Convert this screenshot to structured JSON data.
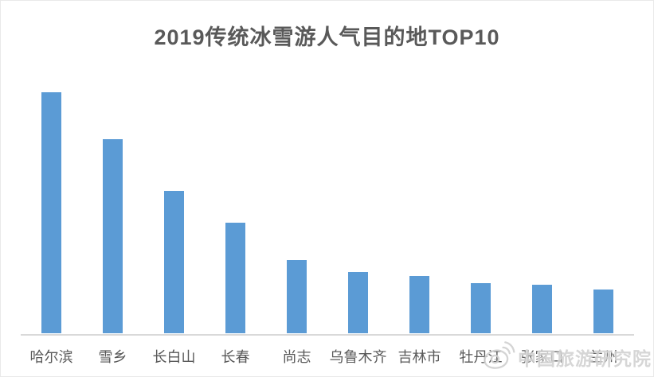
{
  "chart_data": {
    "type": "bar",
    "title": "2019传统冰雪游人气目的地TOP10",
    "categories": [
      "哈尔滨",
      "雪乡",
      "长白山",
      "长春",
      "尚志",
      "乌鲁木齐",
      "吉林市",
      "牡丹江",
      "张家口",
      "兰州"
    ],
    "values": [
      100,
      80.5,
      59,
      46,
      30.5,
      25.5,
      23.8,
      20.8,
      20.1,
      18.2
    ],
    "xlabel": "",
    "ylabel": "",
    "ylim": [
      0,
      100
    ],
    "grid": false,
    "legend": "none",
    "value_axis_visible": false
  },
  "watermark": {
    "text": "中国旅游研究院",
    "icon": "weibo-logo-icon"
  },
  "colors": {
    "bar": "#5B9BD5",
    "axis_line": "#D9D9D9",
    "title_text": "#595959",
    "label_text": "#595959",
    "watermark": "#D2D2D2",
    "background": "#FFFFFF"
  }
}
